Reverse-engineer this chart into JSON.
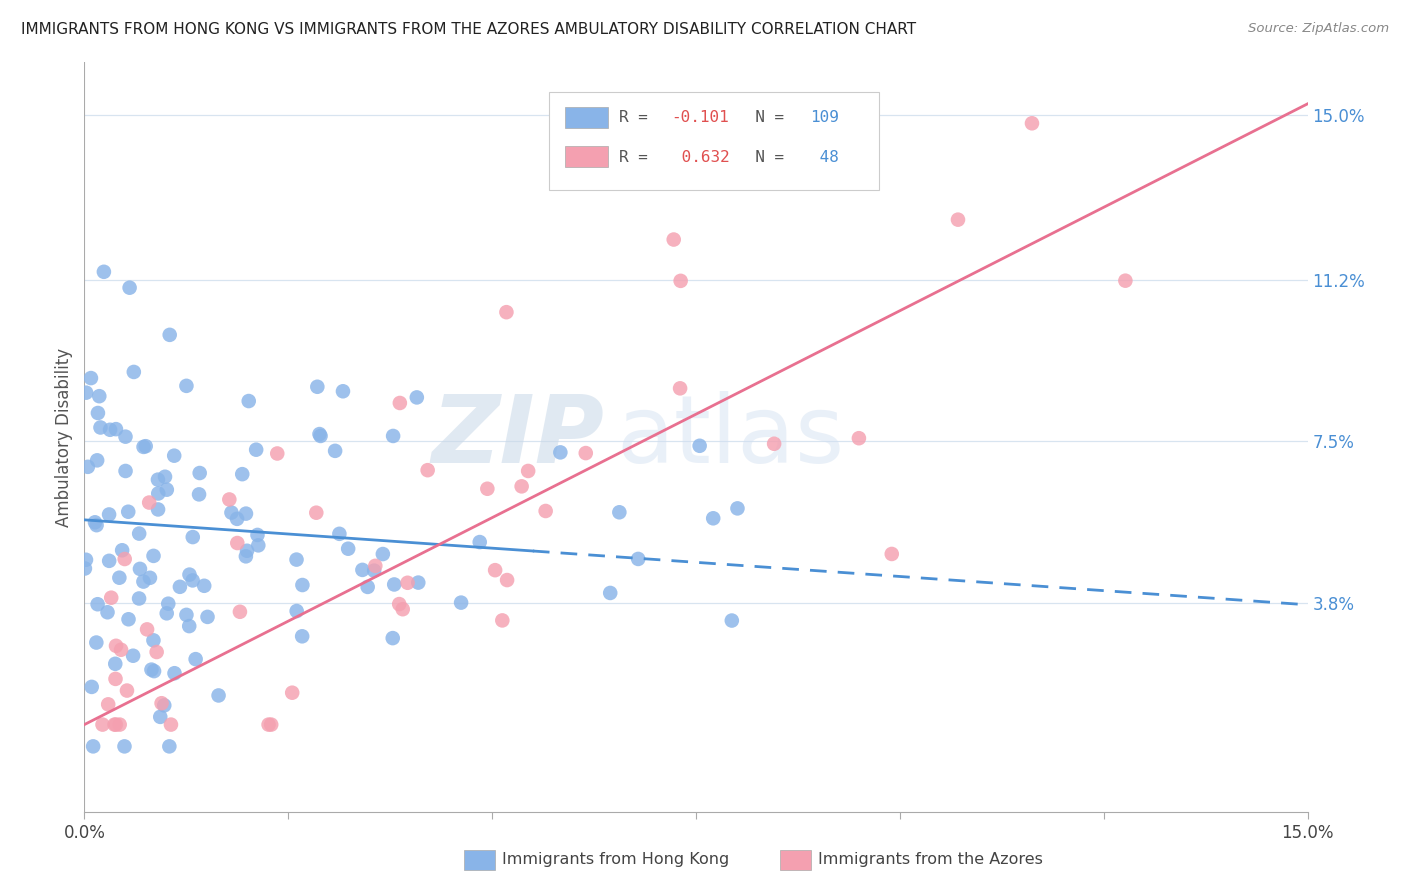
{
  "title": "IMMIGRANTS FROM HONG KONG VS IMMIGRANTS FROM THE AZORES AMBULATORY DISABILITY CORRELATION CHART",
  "source": "Source: ZipAtlas.com",
  "ylabel": "Ambulatory Disability",
  "yticks_right": [
    "15.0%",
    "11.2%",
    "7.5%",
    "3.8%"
  ],
  "yticks_right_vals": [
    0.15,
    0.112,
    0.075,
    0.038
  ],
  "xmin": 0.0,
  "xmax": 0.15,
  "ymin": -0.01,
  "ymax": 0.162,
  "color_hk": "#89b4e8",
  "color_az": "#f4a0b0",
  "color_hk_line": "#4a8fd4",
  "color_az_line": "#e87090",
  "watermark_zip": "ZIP",
  "watermark_atlas": "atlas",
  "hk_r": -0.101,
  "hk_n": 109,
  "az_r": 0.632,
  "az_n": 48,
  "hk_line_solid_end": 0.055,
  "hk_intercept": 0.057,
  "hk_slope": -0.13,
  "az_intercept": 0.01,
  "az_slope": 0.95
}
